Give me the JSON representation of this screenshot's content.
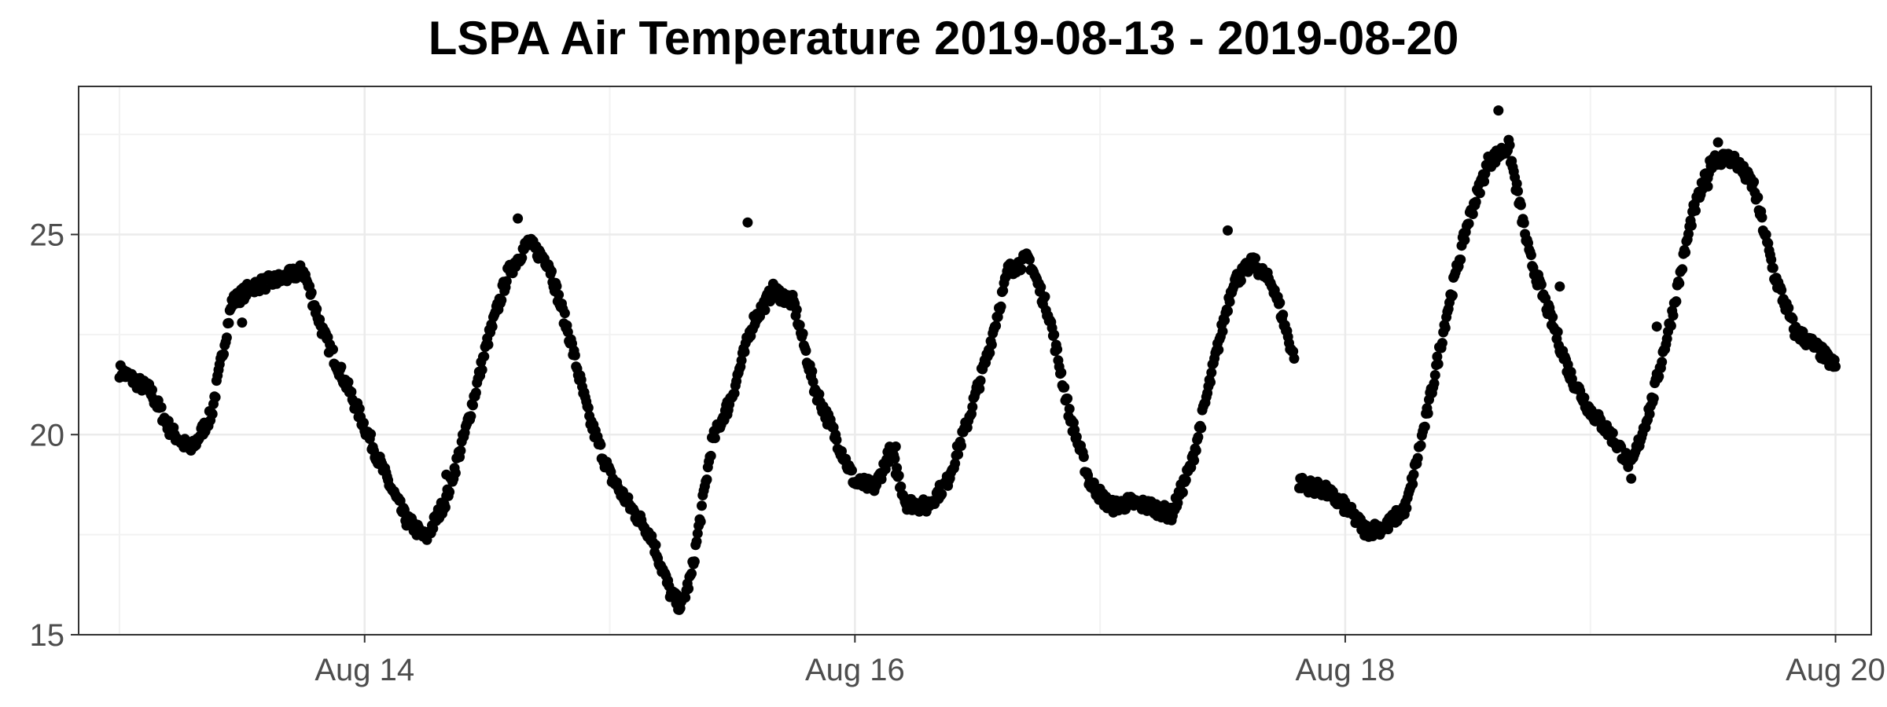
{
  "chart_data": {
    "type": "scatter",
    "title": "LSPA Air Temperature 2019-08-13 - 2019-08-20",
    "xlabel": "",
    "ylabel": "",
    "x_start": "2019-08-13",
    "xlim": [
      "2019-08-12T20:00",
      "2019-08-20T03:30"
    ],
    "ylim": [
      15,
      28.7
    ],
    "x_ticks": [
      {
        "value": "2019-08-14",
        "label": "Aug 14"
      },
      {
        "value": "2019-08-16",
        "label": "Aug 16"
      },
      {
        "value": "2019-08-18",
        "label": "Aug 18"
      },
      {
        "value": "2019-08-20",
        "label": "Aug 20"
      }
    ],
    "y_ticks": [
      15,
      20,
      25
    ],
    "grid": true,
    "legend": "none",
    "point_color": "#000000",
    "series": [
      {
        "name": "",
        "anchors": [
          [
            "2019-08-13T00:00",
            21.6
          ],
          [
            "2019-08-13T03:00",
            21.1
          ],
          [
            "2019-08-13T05:00",
            20.1
          ],
          [
            "2019-08-13T07:00",
            19.6
          ],
          [
            "2019-08-13T09:00",
            20.5
          ],
          [
            "2019-08-13T11:00",
            23.3
          ],
          [
            "2019-08-13T13:00",
            23.7
          ],
          [
            "2019-08-13T16:00",
            23.9
          ],
          [
            "2019-08-13T18:00",
            24.1
          ],
          [
            "2019-08-13T20:00",
            22.5
          ],
          [
            "2019-08-13T23:00",
            20.8
          ],
          [
            "2019-08-14T02:00",
            19.0
          ],
          [
            "2019-08-14T04:00",
            17.9
          ],
          [
            "2019-08-14T06:00",
            17.4
          ],
          [
            "2019-08-14T08:00",
            18.4
          ],
          [
            "2019-08-14T10:00",
            20.2
          ],
          [
            "2019-08-14T12:00",
            22.3
          ],
          [
            "2019-08-14T14:00",
            24.0
          ],
          [
            "2019-08-14T16:00",
            24.8
          ],
          [
            "2019-08-14T18:00",
            24.3
          ],
          [
            "2019-08-14T20:00",
            22.5
          ],
          [
            "2019-08-14T22:00",
            20.4
          ],
          [
            "2019-08-15T00:00",
            19.0
          ],
          [
            "2019-08-15T02:00",
            18.2
          ],
          [
            "2019-08-15T04:00",
            17.5
          ],
          [
            "2019-08-15T06:00",
            16.0
          ],
          [
            "2019-08-15T07:00",
            15.7
          ],
          [
            "2019-08-15T08:00",
            16.5
          ],
          [
            "2019-08-15T10:00",
            19.8
          ],
          [
            "2019-08-15T12:00",
            21.0
          ],
          [
            "2019-08-15T14:00",
            22.8
          ],
          [
            "2019-08-15T16:00",
            23.6
          ],
          [
            "2019-08-15T18:00",
            23.3
          ],
          [
            "2019-08-15T20:00",
            21.2
          ],
          [
            "2019-08-15T22:00",
            20.0
          ],
          [
            "2019-08-16T00:00",
            18.8
          ],
          [
            "2019-08-16T02:00",
            18.7
          ],
          [
            "2019-08-16T03:30",
            19.6
          ],
          [
            "2019-08-16T05:00",
            18.3
          ],
          [
            "2019-08-16T07:00",
            18.2
          ],
          [
            "2019-08-16T09:00",
            18.8
          ],
          [
            "2019-08-16T11:00",
            20.3
          ],
          [
            "2019-08-16T13:00",
            22.0
          ],
          [
            "2019-08-16T15:00",
            24.1
          ],
          [
            "2019-08-16T17:00",
            24.4
          ],
          [
            "2019-08-16T19:00",
            23.0
          ],
          [
            "2019-08-16T21:00",
            20.5
          ],
          [
            "2019-08-16T23:00",
            18.8
          ],
          [
            "2019-08-17T01:00",
            18.2
          ],
          [
            "2019-08-17T03:00",
            18.3
          ],
          [
            "2019-08-17T05:00",
            18.2
          ],
          [
            "2019-08-17T07:00",
            18.0
          ],
          [
            "2019-08-17T09:00",
            19.3
          ],
          [
            "2019-08-17T11:00",
            21.6
          ],
          [
            "2019-08-17T13:00",
            23.8
          ],
          [
            "2019-08-17T15:00",
            24.3
          ],
          [
            "2019-08-17T17:00",
            23.7
          ],
          [
            "2019-08-17T19:00",
            21.9
          ]
        ],
        "anchors_b": [
          [
            "2019-08-17T19:30",
            18.8
          ],
          [
            "2019-08-17T22:00",
            18.6
          ],
          [
            "2019-08-18T00:00",
            18.2
          ],
          [
            "2019-08-18T02:00",
            17.6
          ],
          [
            "2019-08-18T04:00",
            17.7
          ],
          [
            "2019-08-18T06:00",
            18.2
          ],
          [
            "2019-08-18T08:00",
            20.5
          ],
          [
            "2019-08-18T10:00",
            23.1
          ],
          [
            "2019-08-18T12:00",
            25.3
          ],
          [
            "2019-08-18T14:00",
            26.8
          ],
          [
            "2019-08-18T16:00",
            27.2
          ],
          [
            "2019-08-18T18:00",
            24.5
          ],
          [
            "2019-08-18T20:00",
            23.0
          ],
          [
            "2019-08-18T22:00",
            21.5
          ],
          [
            "2019-08-19T00:00",
            20.6
          ],
          [
            "2019-08-19T02:00",
            20.0
          ],
          [
            "2019-08-19T04:00",
            19.2
          ],
          [
            "2019-08-19T06:00",
            20.8
          ],
          [
            "2019-08-19T08:00",
            23.0
          ],
          [
            "2019-08-19T10:00",
            25.5
          ],
          [
            "2019-08-19T12:00",
            26.9
          ],
          [
            "2019-08-19T14:00",
            26.9
          ],
          [
            "2019-08-19T16:00",
            26.2
          ],
          [
            "2019-08-19T18:00",
            24.0
          ],
          [
            "2019-08-19T20:00",
            22.6
          ],
          [
            "2019-08-19T22:00",
            22.2
          ],
          [
            "2019-08-20T00:00",
            21.7
          ]
        ],
        "spikes": [
          [
            "2019-08-14T15:00",
            25.4
          ],
          [
            "2019-08-15T13:30",
            25.3
          ],
          [
            "2019-08-17T12:30",
            25.1
          ],
          [
            "2019-08-18T15:00",
            28.1
          ],
          [
            "2019-08-19T12:30",
            27.3
          ],
          [
            "2019-08-19T11:30",
            26.2
          ],
          [
            "2019-08-19T04:00",
            18.9
          ],
          [
            "2019-08-14T08:00",
            19.0
          ],
          [
            "2019-08-13T12:00",
            22.8
          ],
          [
            "2019-08-15T11:30",
            20.5
          ],
          [
            "2019-08-18T21:00",
            23.7
          ],
          [
            "2019-08-16T04:00",
            19.7
          ],
          [
            "2019-08-19T06:30",
            22.7
          ]
        ]
      }
    ]
  }
}
